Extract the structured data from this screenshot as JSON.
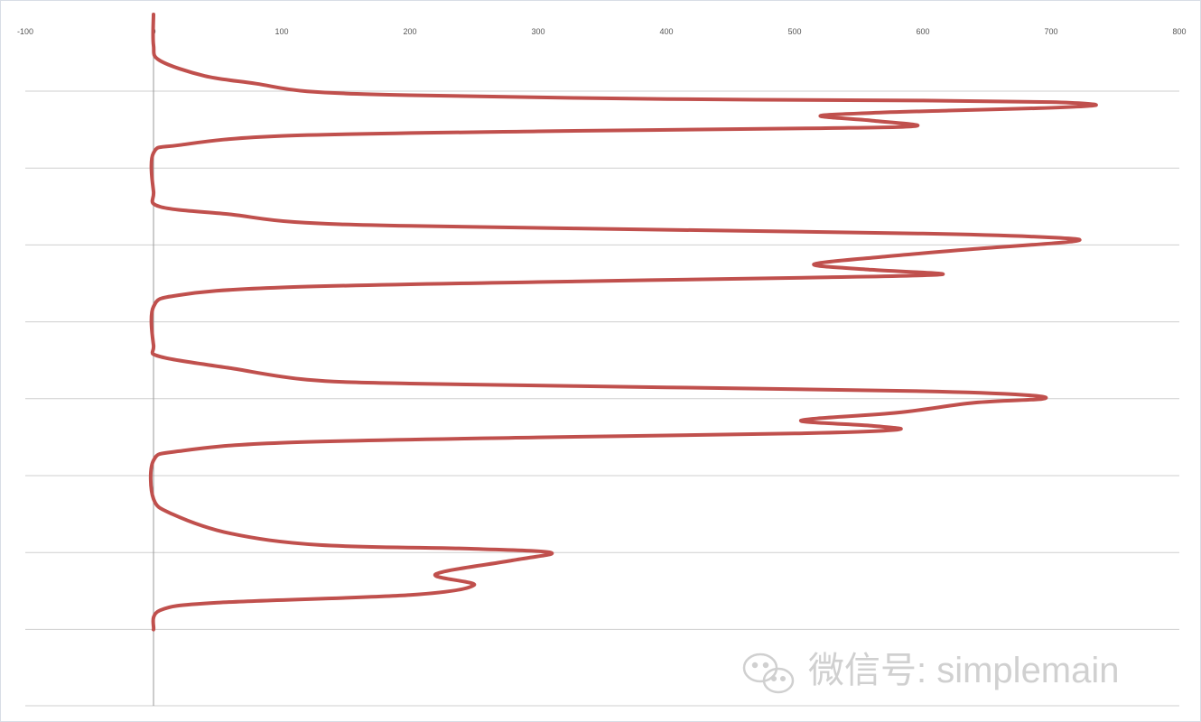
{
  "chart_data": {
    "type": "line",
    "orientation": "vertical-x",
    "xlim": [
      -100,
      800
    ],
    "x_ticks": [
      -100,
      0,
      100,
      200,
      300,
      400,
      500,
      600,
      700,
      800
    ],
    "x_tick_labels": [
      "-100",
      "0",
      "100",
      "200",
      "300",
      "400",
      "500",
      "600",
      "700",
      "800"
    ],
    "y_grid": true,
    "x_axis_position": "top",
    "series": [
      {
        "color": "#c0504d",
        "points": [
          [
            0,
            0.0
          ],
          [
            0,
            0.4
          ],
          [
            5,
            0.6
          ],
          [
            40,
            0.8
          ],
          [
            80,
            0.9
          ],
          [
            120,
            1.0
          ],
          [
            200,
            1.05
          ],
          [
            400,
            1.1
          ],
          [
            600,
            1.12
          ],
          [
            700,
            1.14
          ],
          [
            735,
            1.18
          ],
          [
            690,
            1.22
          ],
          [
            620,
            1.25
          ],
          [
            560,
            1.28
          ],
          [
            520,
            1.32
          ],
          [
            560,
            1.38
          ],
          [
            595,
            1.45
          ],
          [
            520,
            1.48
          ],
          [
            300,
            1.52
          ],
          [
            100,
            1.58
          ],
          [
            20,
            1.7
          ],
          [
            0,
            1.8
          ],
          [
            0,
            2.3
          ],
          [
            5,
            2.5
          ],
          [
            60,
            2.6
          ],
          [
            110,
            2.7
          ],
          [
            200,
            2.75
          ],
          [
            400,
            2.8
          ],
          [
            600,
            2.85
          ],
          [
            700,
            2.9
          ],
          [
            718,
            2.95
          ],
          [
            640,
            3.05
          ],
          [
            570,
            3.15
          ],
          [
            515,
            3.25
          ],
          [
            560,
            3.32
          ],
          [
            615,
            3.38
          ],
          [
            520,
            3.42
          ],
          [
            300,
            3.48
          ],
          [
            100,
            3.55
          ],
          [
            20,
            3.65
          ],
          [
            0,
            3.8
          ],
          [
            0,
            4.3
          ],
          [
            5,
            4.45
          ],
          [
            60,
            4.6
          ],
          [
            120,
            4.75
          ],
          [
            200,
            4.8
          ],
          [
            400,
            4.85
          ],
          [
            600,
            4.9
          ],
          [
            680,
            4.95
          ],
          [
            693,
            5.0
          ],
          [
            640,
            5.05
          ],
          [
            580,
            5.18
          ],
          [
            505,
            5.28
          ],
          [
            560,
            5.35
          ],
          [
            580,
            5.4
          ],
          [
            500,
            5.45
          ],
          [
            300,
            5.5
          ],
          [
            100,
            5.57
          ],
          [
            20,
            5.68
          ],
          [
            0,
            5.8
          ],
          [
            0,
            6.3
          ],
          [
            15,
            6.5
          ],
          [
            60,
            6.75
          ],
          [
            130,
            6.9
          ],
          [
            250,
            6.95
          ],
          [
            310,
            7.0
          ],
          [
            280,
            7.1
          ],
          [
            220,
            7.28
          ],
          [
            250,
            7.42
          ],
          [
            200,
            7.55
          ],
          [
            50,
            7.65
          ],
          [
            5,
            7.75
          ],
          [
            0,
            8.0
          ]
        ]
      }
    ],
    "y_range": [
      0,
      8
    ]
  },
  "watermark": {
    "text": "微信号: simplemain"
  }
}
